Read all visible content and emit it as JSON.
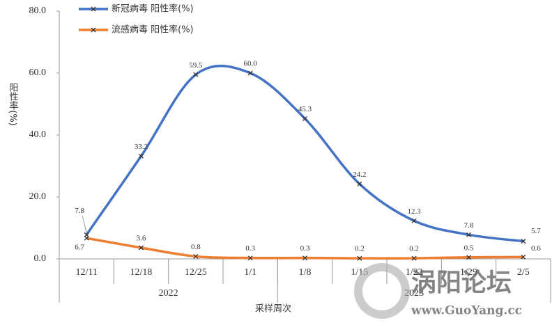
{
  "chart_data": {
    "type": "line",
    "categories": [
      "12/11",
      "12/18",
      "12/25",
      "1/1",
      "1/8",
      "1/15",
      "1/22",
      "1/29",
      "2/5"
    ],
    "groups": [
      {
        "label": "2022",
        "span": 4
      },
      {
        "label": "2023",
        "span": 5
      }
    ],
    "x_label": "采样周次",
    "y_label": "阳性率(%)",
    "ylim": [
      0,
      80
    ],
    "yticks": [
      {
        "value": 0,
        "label": "0.0"
      },
      {
        "value": 20,
        "label": "20.0"
      },
      {
        "value": 40,
        "label": "40.0"
      },
      {
        "value": 60,
        "label": "60.0"
      },
      {
        "value": 80,
        "label": "80.0"
      }
    ],
    "smooth": true,
    "legend": "top",
    "series": [
      {
        "name": "新冠病毒 阳性率(%)",
        "color": "#4472c4",
        "values": [
          7.8,
          33.2,
          59.5,
          60.0,
          45.3,
          24.2,
          12.3,
          7.8,
          5.7
        ],
        "value_labels": [
          "7.8",
          "33.2",
          "59.5",
          "60.0",
          "45.3",
          "24.2",
          "12.3",
          "7.8",
          "5.7"
        ]
      },
      {
        "name": "流感病毒 阳性率(%)",
        "color": "#ed7d31",
        "values": [
          6.7,
          3.6,
          0.8,
          0.3,
          0.3,
          0.2,
          0.2,
          0.5,
          0.6
        ],
        "value_labels": [
          "6.7",
          "3.6",
          "0.8",
          "0.3",
          "0.3",
          "0.2",
          "0.2",
          "0.5",
          "0.6"
        ]
      }
    ],
    "watermark": [
      "涡阳论坛",
      "www.GuoYang.cc"
    ]
  }
}
